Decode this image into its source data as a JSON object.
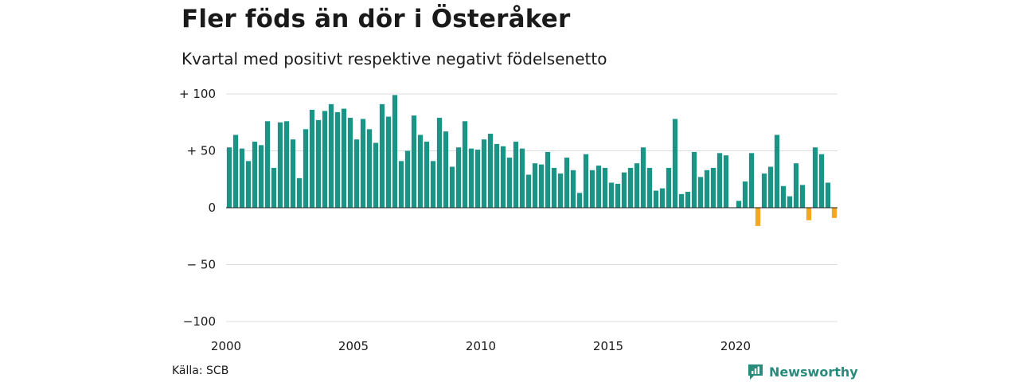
{
  "header": {
    "title": "Fler föds än dör i Österåker",
    "subtitle": "Kvartal med positivt respektive negativt födelsenetto"
  },
  "footer": {
    "source": "Källa: SCB",
    "brand": "Newsworthy"
  },
  "colors": {
    "positive": "#1a9485",
    "negative": "#f5a623",
    "brand": "#2a8a7c"
  },
  "icons": {
    "brand_logo": "newsworthy-logo-icon"
  },
  "chart_data": {
    "type": "bar",
    "title": "Fler föds än dör i Österåker",
    "subtitle": "Kvartal med positivt respektive negativt födelsenetto",
    "xlabel": "",
    "ylabel": "",
    "ylim": [
      -100,
      100
    ],
    "grid": true,
    "yticks": [
      100,
      50,
      0,
      -50,
      -100
    ],
    "ytick_labels": [
      "+ 100",
      "+  50",
      "0",
      "− 50",
      "−100"
    ],
    "xticks": [
      2000,
      2005,
      2010,
      2015,
      2020
    ],
    "xtick_labels": [
      "2000",
      "2005",
      "2010",
      "2015",
      "2020"
    ],
    "start_year": 2000,
    "periods_per_year": 4,
    "values": [
      53,
      64,
      52,
      41,
      58,
      55,
      76,
      35,
      75,
      76,
      60,
      26,
      69,
      86,
      77,
      85,
      91,
      84,
      87,
      79,
      60,
      78,
      69,
      57,
      91,
      80,
      99,
      41,
      50,
      81,
      64,
      58,
      41,
      79,
      67,
      36,
      53,
      76,
      52,
      51,
      60,
      65,
      56,
      54,
      44,
      58,
      52,
      29,
      39,
      38,
      49,
      35,
      30,
      44,
      33,
      13,
      47,
      33,
      37,
      35,
      22,
      21,
      31,
      35,
      39,
      53,
      35,
      15,
      17,
      35,
      78,
      12,
      14,
      49,
      27,
      33,
      35,
      48,
      46,
      0,
      6,
      23,
      48,
      -16,
      30,
      36,
      64,
      19,
      10,
      39,
      20,
      -11,
      53,
      47,
      22,
      -9
    ]
  }
}
